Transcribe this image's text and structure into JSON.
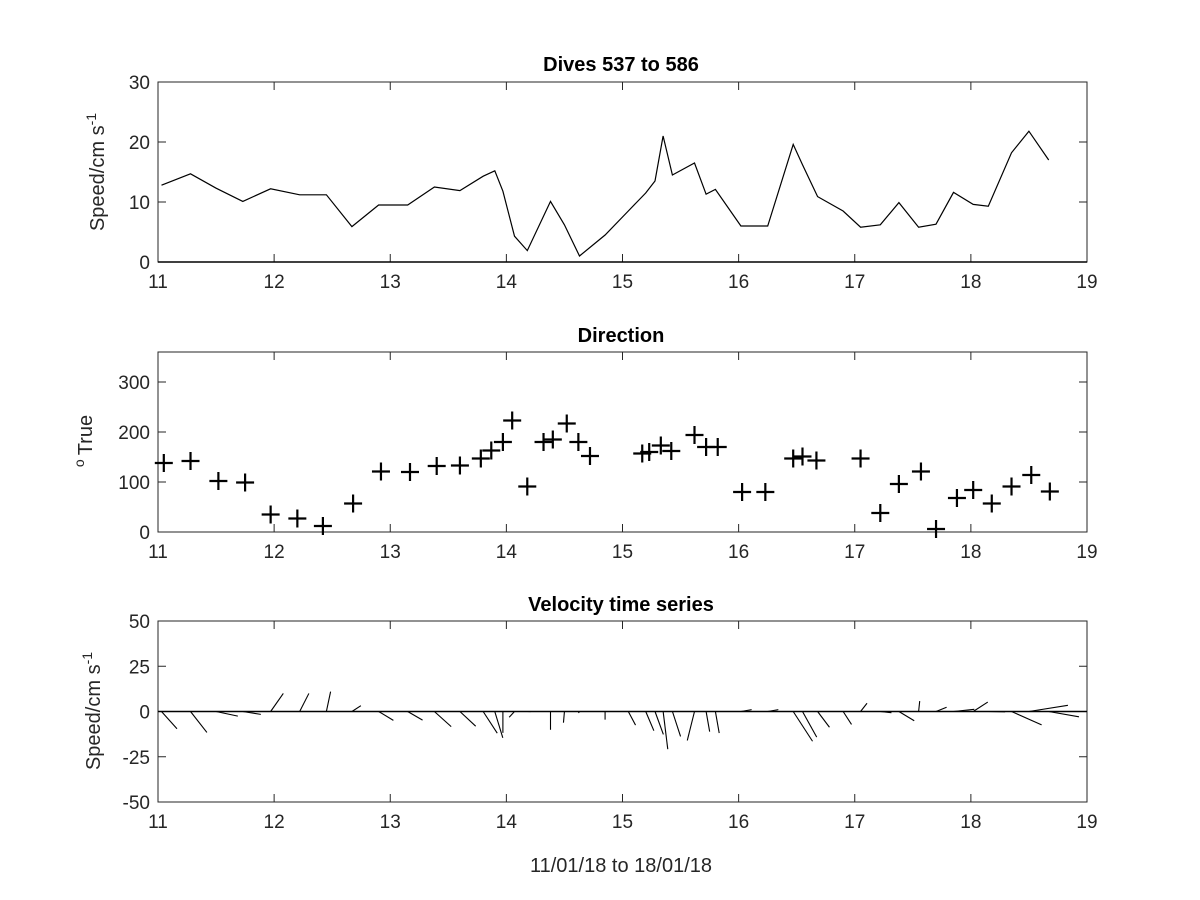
{
  "colors": {
    "ink": "#000000",
    "axis": "#262626",
    "background": "#ffffff"
  },
  "chart_data": [
    {
      "type": "line",
      "title": "Dives 537 to 586",
      "ylabel": "Speed/cm s",
      "ylabel_sup": "-1",
      "xlim": [
        11,
        19
      ],
      "ylim": [
        0,
        30
      ],
      "xticks": [
        "11",
        "12",
        "13",
        "14",
        "15",
        "16",
        "17",
        "18",
        "19"
      ],
      "yticks": [
        "0",
        "10",
        "20",
        "30"
      ],
      "x": [
        11.03,
        11.28,
        11.5,
        11.73,
        11.97,
        12.22,
        12.45,
        12.67,
        12.9,
        13.15,
        13.38,
        13.6,
        13.8,
        13.9,
        13.97,
        14.07,
        14.18,
        14.38,
        14.5,
        14.63,
        14.85,
        15.05,
        15.2,
        15.28,
        15.35,
        15.43,
        15.62,
        15.72,
        15.8,
        16.02,
        16.25,
        16.47,
        16.55,
        16.68,
        16.9,
        17.05,
        17.22,
        17.38,
        17.55,
        17.7,
        17.85,
        18.02,
        18.15,
        18.35,
        18.5,
        18.67
      ],
      "values": [
        12.8,
        14.7,
        12.3,
        10.1,
        12.2,
        11.2,
        11.2,
        5.9,
        9.5,
        9.5,
        12.5,
        11.9,
        14.3,
        15.2,
        11.8,
        4.3,
        1.9,
        10.1,
        6.2,
        1.0,
        4.5,
        8.5,
        11.5,
        13.5,
        21.0,
        14.5,
        16.5,
        11.3,
        12.1,
        6.0,
        6.0,
        19.6,
        16.2,
        10.9,
        8.5,
        5.8,
        6.2,
        9.9,
        5.8,
        6.3,
        11.6,
        9.6,
        9.3,
        18.2,
        21.8,
        17.0
      ]
    },
    {
      "type": "scatter",
      "title": "Direction",
      "ylabel": "True",
      "ylabel_pre": "o",
      "xlim": [
        11,
        19
      ],
      "ylim": [
        0,
        360
      ],
      "xticks": [
        "11",
        "12",
        "13",
        "14",
        "15",
        "16",
        "17",
        "18",
        "19"
      ],
      "yticks": [
        "0",
        "100",
        "200",
        "300"
      ],
      "marker": "+",
      "x": [
        11.05,
        11.28,
        11.52,
        11.75,
        11.97,
        12.2,
        12.42,
        12.68,
        12.92,
        13.17,
        13.4,
        13.6,
        13.78,
        13.87,
        13.97,
        14.05,
        14.18,
        14.32,
        14.4,
        14.52,
        14.62,
        14.72,
        15.17,
        15.23,
        15.33,
        15.42,
        15.62,
        15.72,
        15.82,
        16.03,
        16.23,
        16.47,
        16.55,
        16.67,
        17.05,
        17.22,
        17.38,
        17.57,
        17.7,
        17.88,
        18.02,
        18.18,
        18.35,
        18.52,
        18.68
      ],
      "values": [
        138,
        142,
        102,
        99,
        35,
        27,
        12,
        57,
        121,
        120,
        132,
        133,
        147,
        163,
        180,
        223,
        91,
        180,
        185,
        217,
        180,
        152,
        157,
        160,
        173,
        162,
        194,
        170,
        170,
        80,
        80,
        147,
        151,
        143,
        147,
        38,
        96,
        121,
        6,
        68,
        84,
        57,
        91,
        114,
        81
      ]
    },
    {
      "type": "line",
      "title": "Velocity time series",
      "ylabel": "Speed/cm s",
      "ylabel_sup": "-1",
      "xlabel": "11/01/18 to 18/01/18",
      "xlim": [
        11,
        19
      ],
      "ylim": [
        -50,
        50
      ],
      "xticks": [
        "11",
        "12",
        "13",
        "14",
        "15",
        "16",
        "17",
        "18",
        "19"
      ],
      "yticks": [
        "-50",
        "-25",
        "0",
        "25",
        "50"
      ],
      "series": [
        {
          "name": "",
          "x": [
            11.03,
            11.28,
            11.5,
            11.73,
            11.97,
            12.22,
            12.45,
            12.67,
            12.9,
            13.15,
            13.38,
            13.6,
            13.8,
            13.9,
            13.97,
            14.07,
            14.18,
            14.38,
            14.5,
            14.63,
            14.85,
            15.05,
            15.2,
            15.28,
            15.35,
            15.43,
            15.62,
            15.72,
            15.8,
            16.02,
            16.25,
            16.47,
            16.55,
            16.68,
            16.9,
            17.05,
            17.22,
            17.38,
            17.55,
            17.7,
            17.85,
            18.02,
            18.15,
            18.35,
            18.5,
            18.67
          ],
          "speed": [
            12.8,
            14.7,
            12.3,
            10.1,
            12.2,
            11.2,
            11.2,
            5.9,
            9.5,
            9.5,
            12.5,
            11.9,
            14.3,
            15.2,
            11.8,
            4.3,
            1.9,
            10.1,
            6.2,
            1.0,
            4.5,
            8.5,
            11.5,
            13.5,
            21.0,
            14.5,
            16.5,
            11.3,
            12.1,
            6.0,
            6.0,
            19.6,
            16.2,
            10.9,
            8.5,
            5.8,
            6.2,
            9.9,
            5.8,
            6.3,
            11.6,
            9.6,
            9.3,
            18.2,
            21.8,
            17.0
          ],
          "direction": [
            138,
            142,
            102,
            99,
            35,
            27,
            12,
            57,
            121,
            120,
            132,
            133,
            147,
            163,
            180,
            223,
            91,
            180,
            185,
            217,
            180,
            152,
            157,
            160,
            173,
            162,
            194,
            170,
            170,
            80,
            80,
            147,
            151,
            143,
            147,
            38,
            96,
            121,
            6,
            68,
            84,
            57,
            91,
            114,
            81,
            100
          ]
        }
      ]
    }
  ]
}
